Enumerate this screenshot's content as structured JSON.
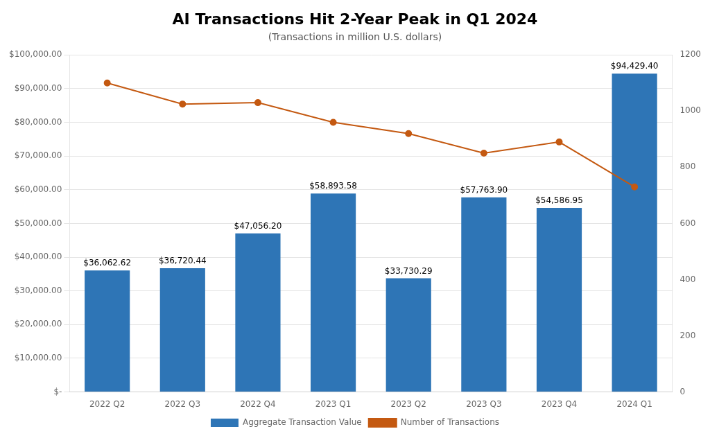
{
  "chart_data": {
    "type": "bar",
    "title": "AI Transactions Hit 2-Year Peak in Q1 2024",
    "subtitle": "(Transactions in million U.S. dollars)",
    "categories": [
      "2022 Q2",
      "2022 Q3",
      "2022 Q4",
      "2023 Q1",
      "2023 Q2",
      "2023 Q3",
      "2023 Q4",
      "2024 Q1"
    ],
    "series": [
      {
        "name": "Aggregate Transaction Value",
        "type": "bar",
        "color": "#2E75B6",
        "values": [
          36062.62,
          36720.44,
          47056.2,
          58893.58,
          33730.29,
          57763.9,
          54586.95,
          94429.4
        ],
        "value_labels": [
          "$36,062.62",
          "$36,720.44",
          "$47,056.20",
          "$58,893.58",
          "$33,730.29",
          "$57,763.90",
          "$54,586.95",
          "$94,429.40"
        ]
      },
      {
        "name": "Number of Transactions",
        "type": "line",
        "axis": "y2",
        "color": "#C45911",
        "marker": "circle",
        "values": [
          1100,
          1025,
          1030,
          960,
          920,
          850,
          890,
          730
        ]
      }
    ],
    "ylim": [
      0,
      100000
    ],
    "yticks": [
      {
        "value": 0,
        "label": "$-"
      },
      {
        "value": 10000,
        "label": "$10,000.00"
      },
      {
        "value": 20000,
        "label": "$20,000.00"
      },
      {
        "value": 30000,
        "label": "$30,000.00"
      },
      {
        "value": 40000,
        "label": "$40,000.00"
      },
      {
        "value": 50000,
        "label": "$50,000.00"
      },
      {
        "value": 60000,
        "label": "$60,000.00"
      },
      {
        "value": 70000,
        "label": "$70,000.00"
      },
      {
        "value": 80000,
        "label": "$80,000.00"
      },
      {
        "value": 90000,
        "label": "$90,000.00"
      },
      {
        "value": 100000,
        "label": "$100,000.00"
      }
    ],
    "y2lim": [
      0,
      1200
    ],
    "y2ticks": [
      0,
      200,
      400,
      600,
      800,
      1000,
      1200
    ],
    "grid": true,
    "legend": "bottom"
  }
}
